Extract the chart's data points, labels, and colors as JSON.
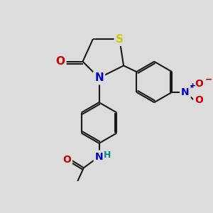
{
  "bg_color": "#dcdcdc",
  "bond_color": "#1a1a1a",
  "atom_colors": {
    "S": "#cccc00",
    "N": "#0000cc",
    "N_nh": "#008888",
    "O": "#cc0000",
    "N_plus": "#0000cc"
  },
  "lw": 1.5,
  "fs": 11
}
